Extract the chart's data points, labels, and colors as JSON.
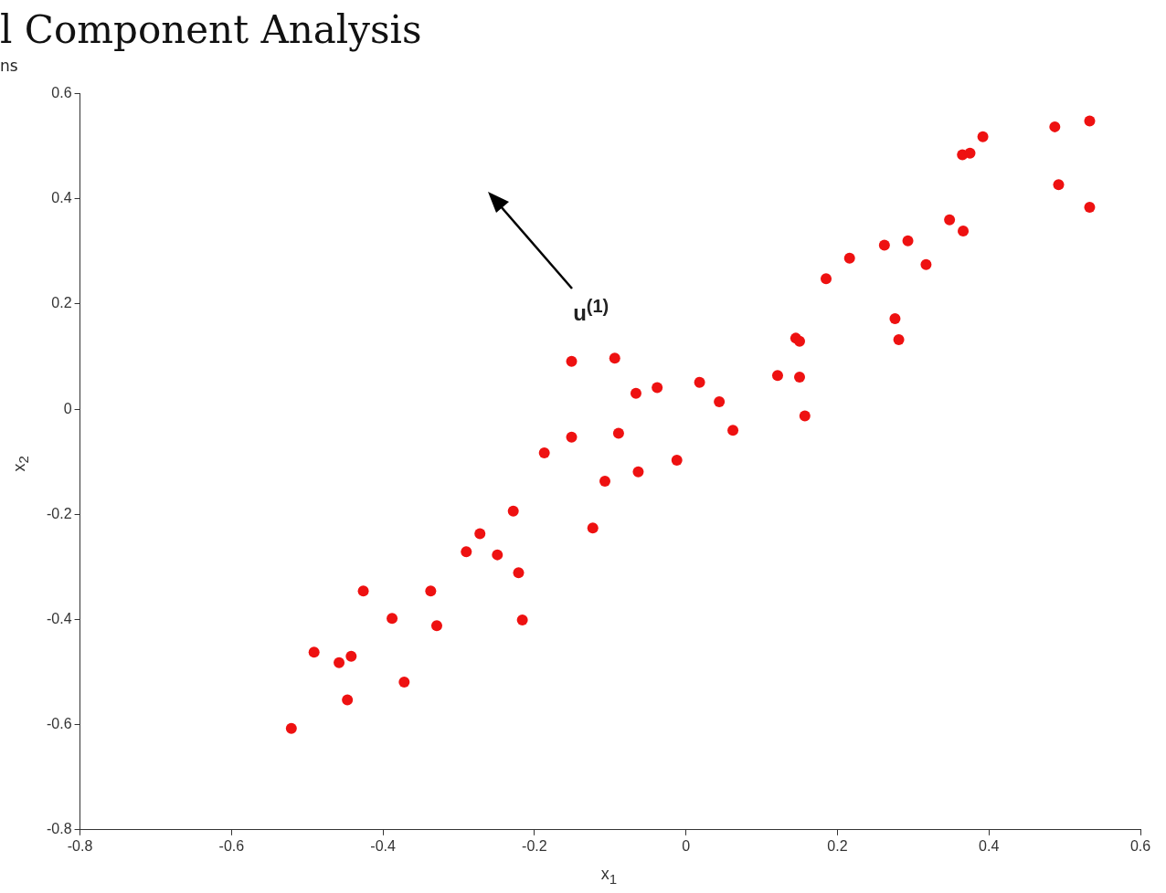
{
  "chart_data": {
    "type": "scatter",
    "title": "l Component Analysis",
    "subtitle": "ns",
    "xlabel": "x$_{1}$",
    "ylabel": "x$_{2}$",
    "xlim": [
      -0.8,
      0.6
    ],
    "xticks": [
      -0.8,
      -0.6,
      -0.4,
      -0.2,
      0,
      0.2,
      0.4,
      0.6
    ],
    "ylim": [
      -0.8,
      0.6
    ],
    "yticks": [
      -0.8,
      -0.6,
      -0.4,
      -0.2,
      0,
      0.2,
      0.4,
      0.6
    ],
    "grid": false,
    "legend": false,
    "marker": "circle",
    "annotations": [
      "u$^{(1)}$"
    ],
    "series": [
      {
        "color": "#ee1111",
        "x": [
          -0.521,
          -0.491,
          -0.458,
          -0.442,
          -0.447,
          -0.426,
          -0.388,
          -0.372,
          -0.337,
          -0.329,
          -0.29,
          -0.272,
          -0.249,
          -0.228,
          -0.221,
          -0.216,
          -0.187,
          -0.151,
          -0.151,
          -0.123,
          -0.107,
          -0.094,
          -0.089,
          -0.066,
          -0.063,
          -0.038,
          -0.012,
          0.018,
          0.044,
          0.062,
          0.121,
          0.145,
          0.15,
          0.15,
          0.157,
          0.185,
          0.216,
          0.262,
          0.276,
          0.281,
          0.293,
          0.317,
          0.348,
          0.366,
          0.365,
          0.375,
          0.392,
          0.487,
          0.492,
          0.533,
          0.533
        ],
        "values": [
          -0.607,
          -0.462,
          -0.482,
          -0.47,
          -0.553,
          -0.346,
          -0.398,
          -0.519,
          -0.346,
          -0.412,
          -0.271,
          -0.237,
          -0.277,
          -0.194,
          -0.311,
          -0.401,
          -0.083,
          0.091,
          -0.053,
          -0.226,
          -0.137,
          0.097,
          -0.046,
          0.03,
          -0.119,
          0.041,
          -0.097,
          0.051,
          0.014,
          -0.04,
          0.064,
          0.135,
          0.129,
          0.061,
          -0.013,
          0.248,
          0.287,
          0.312,
          0.172,
          0.132,
          0.32,
          0.275,
          0.36,
          0.339,
          0.484,
          0.487,
          0.518,
          0.537,
          0.427,
          0.548,
          0.384
        ]
      }
    ]
  }
}
